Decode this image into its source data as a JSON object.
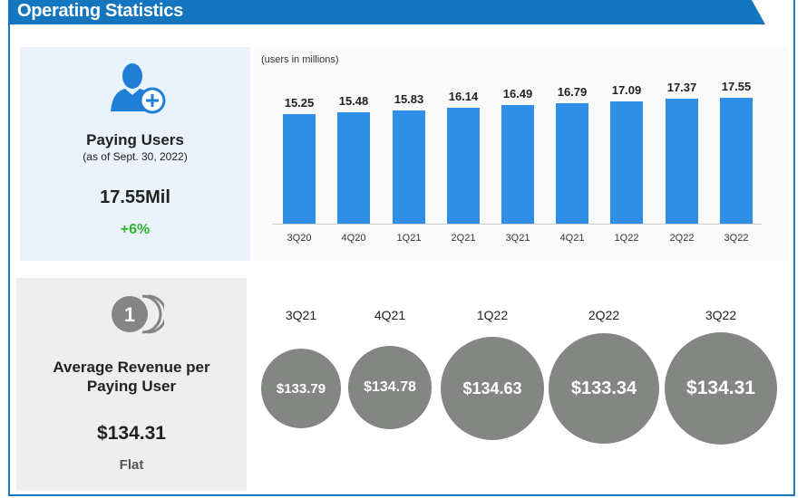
{
  "header": {
    "title": "Operating Statistics"
  },
  "paying_users": {
    "title": "Paying Users",
    "subtitle": "(as of Sept. 30, 2022)",
    "value": "17.55Mil",
    "change": "+6%",
    "change_color": "#2db52d",
    "icon": "user-plus-icon"
  },
  "arpu": {
    "title_line1": "Average Revenue per",
    "title_line2": "Paying User",
    "value": "$134.31",
    "change": "Flat",
    "icon": "coins-icon"
  },
  "chart_data": [
    {
      "type": "bar",
      "title": "",
      "note": "(users in millions)",
      "categories": [
        "3Q20",
        "4Q20",
        "1Q21",
        "2Q21",
        "3Q21",
        "4Q21",
        "1Q22",
        "2Q22",
        "3Q22"
      ],
      "values": [
        15.25,
        15.48,
        15.83,
        16.14,
        16.49,
        16.79,
        17.09,
        17.37,
        17.55
      ],
      "labels": [
        "15.25",
        "15.48",
        "15.83",
        "16.14",
        "16.49",
        "16.79",
        "17.09",
        "17.37",
        "17.55"
      ],
      "ylim": [
        0,
        18
      ],
      "grid": false,
      "color": "#2f8fe6"
    },
    {
      "type": "bubble",
      "categories": [
        "3Q21",
        "4Q21",
        "1Q22",
        "2Q22",
        "3Q22"
      ],
      "values": [
        133.79,
        134.78,
        134.63,
        133.34,
        134.31
      ],
      "labels": [
        "$133.79",
        "$134.78",
        "$134.63",
        "$133.34",
        "$134.31"
      ],
      "color": "#838683"
    }
  ]
}
